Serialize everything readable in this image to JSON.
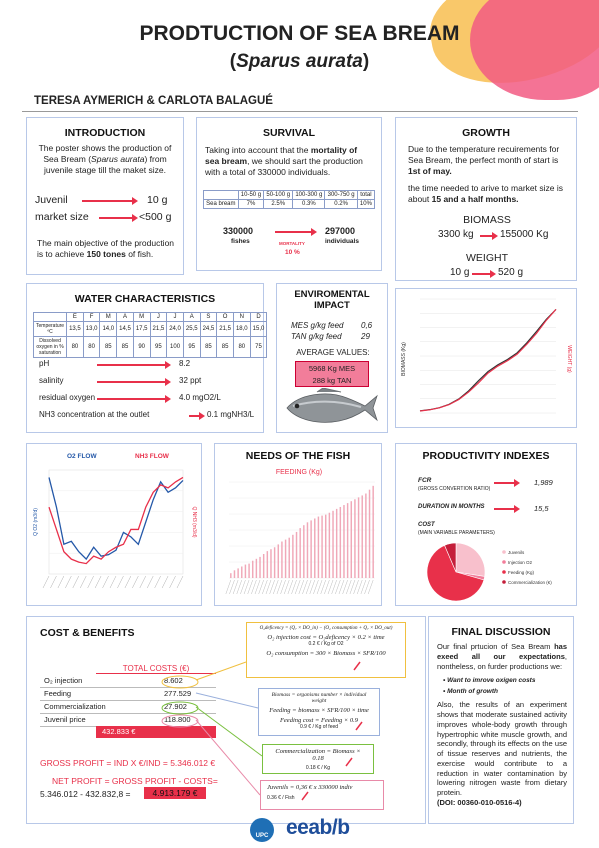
{
  "header": {
    "title": "PRODTUCTION OF SEA BREAM",
    "subtitle_open": "(",
    "subtitle_sci": "Sparus aurata",
    "subtitle_close": ")",
    "authors": "TERESA AYMERICH  & CARLOTA BALAGUÉ"
  },
  "intro": {
    "title": "INTRODUCTION",
    "text1": "The poster shows the production of Sea Bream (",
    "text1_sci": "Sparus aurata",
    "text1_end": ") from juvenile stage till the maket size.",
    "row1_label": "Juvenil",
    "row1_value": "10 g",
    "row2_label": "market size",
    "row2_value": "<500 g",
    "text2": "The main objective of the production is to achieve ",
    "text2_bold": "150 tones",
    "text2_end": " of fish."
  },
  "survival": {
    "title": "SURVIVAL",
    "text_a": "Taking into account that the ",
    "text_bold": "mortality of sea bream",
    "text_b": ", we should sart the production with a total of 330000 individuals.",
    "table_header": [
      "",
      "10-50 g",
      "50-100 g",
      "100-300 g",
      "300-750 g",
      "total"
    ],
    "table_row": [
      "Sea bream",
      "7%",
      "2.5%",
      "0.3%",
      "0.2%",
      "10%"
    ],
    "start_value": "330000",
    "start_label": "fishes",
    "mort_label": "MORTALITY",
    "mort_value": "10 %",
    "end_value": "297000",
    "end_label": "individuals"
  },
  "growth": {
    "title": "GROWTH",
    "text1_a": "Due to the temperature recuirements for Sea Bream, the perfect month of start is ",
    "text1_bold": "1st of may.",
    "text2_a": "the time needed to arive to market size is about ",
    "text2_bold": "15 and a half months.",
    "biomass_label": "BIOMASS",
    "biomass_from": "3300 kg",
    "biomass_to": "155000 Kg",
    "weight_label": "WEIGHT",
    "weight_from": "10 g",
    "weight_to": "520 g"
  },
  "water": {
    "title": "WATER CHARACTERISTICS",
    "months": [
      "",
      "E",
      "F",
      "M",
      "A",
      "M",
      "J",
      "J",
      "A",
      "S",
      "O",
      "N",
      "D"
    ],
    "temp_row": [
      "Temperature ºC",
      "13,5",
      "13,0",
      "14,0",
      "14,5",
      "17,5",
      "21,5",
      "24,0",
      "25,5",
      "24,5",
      "21,5",
      "18,0",
      "15,0"
    ],
    "oxy_row": [
      "Dissolved oxygen in % saturation",
      "80",
      "80",
      "85",
      "85",
      "90",
      "95",
      "100",
      "95",
      "85",
      "85",
      "80",
      "75"
    ],
    "params": [
      {
        "label": "pH",
        "value": "8.2"
      },
      {
        "label": "salinity",
        "value": "32 ppt"
      },
      {
        "label": "residual oxygen",
        "value": "4.0 mgO2/L"
      },
      {
        "label": "NH3 concentration at the outlet",
        "value": "0.1 mgNH3/L"
      }
    ]
  },
  "env": {
    "title": "ENVIROMENTAL IMPACT",
    "mes_label": "MES g/kg feed",
    "mes_value": "0,6",
    "tan_label": "TAN g/kg feed",
    "tan_value": "29",
    "avg_label": "AVERAGE VALUES:",
    "avg1": "5968 Kg MES",
    "avg2": "288 kg TAN"
  },
  "growth_chart": {
    "ylabel_left": "BIOMASS (Kg)",
    "ylabel_right": "WEIGHT (g)"
  },
  "flow": {
    "o2_label": "O2 FLOW",
    "nh3_label": "NH3 FLOW",
    "ylabel_left": "Q O2 (m3/d)",
    "ylabel_right": "Q NH3 (m3/d)"
  },
  "needs": {
    "title": "NEEDS OF THE FISH",
    "chart_title": "FEEDING (Kg)"
  },
  "prod": {
    "title": "PRODUCTIVITY INDEXES",
    "fcr_label": "FCR",
    "fcr_sub": "(GROSS CONVERTION RATIO)",
    "fcr_value": "1,989",
    "dur_label": "DURATION IN MONTHS",
    "dur_value": "15,5",
    "cost_label": "COST",
    "cost_sub": "(MAIN VARIABLE PARAMETERS)",
    "legend": [
      "Juvenils",
      "Injection O2",
      "Feeding (Kg)",
      "Commercialization (€)"
    ]
  },
  "cost": {
    "title": "COST & BENEFITS",
    "table_title": "TOTAL COSTS (€)",
    "rows": [
      {
        "label": "O₂ injection",
        "value": "8.602"
      },
      {
        "label": "Feeding",
        "value": "277.529"
      },
      {
        "label": "Commercialization",
        "value": "27.902"
      },
      {
        "label": "Juvenil price",
        "value": "118.800"
      }
    ],
    "total": "432.833 €",
    "gross": "GROSS PROFIT = IND X €/IND = 5.346.012 €",
    "net_line1": "NET PROFIT = GROSS PROFIT - COSTS=",
    "net_line2": "5.346.012  -  432.832,8  =",
    "net_value": "4.913.179 €"
  },
  "formulas": {
    "f1": "O₂deficency = (Q₇ × DO_in) − (O₂ consumption + Q₇ × DO_out)",
    "f2": "O₂ injection cost = O₂deficency × 0.2 × time",
    "f2_note": "0.2 € / Kg of O2",
    "f3": "O₂ consumption = 300 × Biomass × SFR/100",
    "f4": "Biomass = organisms number × individual weight",
    "f5": "Feeding = biomass × SFR/100 × time",
    "f6": "Feeding cost = Feeding × 0.9",
    "f6_note": "0.9 € / Kg of feed",
    "f7": "Commercialization = Biomass × 0.18",
    "f7_note": "0.18 € / Kg",
    "f8": "Juvenils = 0,36 € x 330000 indiv",
    "f8_note": "0.36 € / Fish"
  },
  "final": {
    "title": "FINAL DISCUSSION",
    "p1_a": "Our final prtucion of Sea Bream ",
    "p1_bold": "has exeed all our expectations",
    "p1_b": ", nontheless, on furder productions we:",
    "bullets": [
      "Want to imrove oxigen costs",
      "Month of growth"
    ],
    "p2": "Also, the results of an experiment shows that moderate sustained activity improves whole-body growth through hypertrophic white muscle growth, and secondly, through its effects on the use of tissue reserves and nutrients, the exercise would contribute to a reduction in water contamination by lowering nitrogen waste from dietary protein.",
    "doi": "(DOI: 00360-010-0516-4)"
  },
  "logos": {
    "upc": "UPC",
    "eeabb": "eeab/b"
  },
  "colors": {
    "accent": "#e8304a",
    "panel_border": "#b8c8e8",
    "blob_yellow": "#f9c86a",
    "blob_pink": "#f25b83",
    "o2_blue": "#2458a8",
    "feed_pink": "#f0a8b8"
  },
  "chart_data": [
    {
      "type": "line",
      "title": "",
      "series": [
        {
          "name": "",
          "values": [
            3300,
            5000,
            8000,
            13000,
            21000,
            33000,
            48000,
            62000,
            72000,
            80000,
            90000,
            105000,
            122000,
            140000,
            155000
          ]
        },
        {
          "name": "",
          "values": [
            10,
            16,
            26,
            42,
            68,
            105,
            150,
            200,
            235,
            262,
            295,
            345,
            400,
            465,
            520
          ]
        }
      ],
      "ylabel": "BIOMASS (Kg)",
      "y2label": "WEIGHT (g)"
    },
    {
      "type": "line",
      "series": [
        {
          "name": "O2 FLOW",
          "values": [
            6.5,
            4.5,
            2.0,
            2.2,
            1.5,
            1.0,
            1.8,
            1.2,
            1.3,
            1.6,
            2.8,
            2.5,
            2.0,
            3.5,
            5.0,
            6.2,
            5.5,
            5.8,
            6.3
          ]
        },
        {
          "name": "NH3 FLOW",
          "values": [
            4.5,
            3.0,
            1.5,
            1.0,
            0.8,
            0.7,
            1.2,
            1.0,
            1.5,
            1.8,
            2.0,
            3.0,
            3.0,
            4.5,
            5.5,
            6.0,
            5.8,
            6.2,
            6.5
          ]
        }
      ]
    },
    {
      "type": "bar",
      "title": "FEEDING (Kg)",
      "values": [
        5,
        8,
        10,
        12,
        14,
        15,
        18,
        20,
        22,
        25,
        28,
        30,
        32,
        35,
        38,
        40,
        42,
        45,
        48,
        52,
        55,
        58,
        60,
        62,
        64,
        65,
        66,
        68,
        70,
        72,
        74,
        76,
        78,
        80,
        82,
        84,
        86,
        88,
        92,
        96
      ]
    },
    {
      "type": "pie",
      "categories": [
        "Juvenils",
        "Injection O2",
        "Feeding (Kg)",
        "Commercialization (€)"
      ],
      "values": [
        118800,
        8602,
        277529,
        27902
      ]
    }
  ]
}
